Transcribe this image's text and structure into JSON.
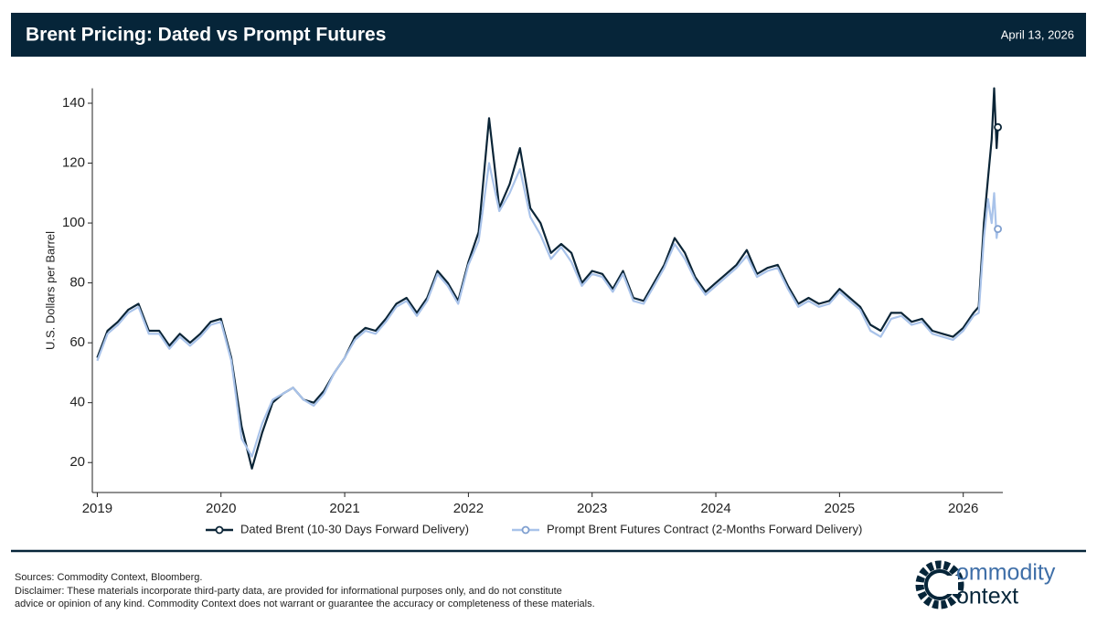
{
  "chart_data": {
    "type": "line",
    "title": "Brent Pricing: Dated vs Prompt Futures",
    "date": "April 13, 2026",
    "y_label": "U.S. Dollars per Barrel",
    "x": [
      2019.0,
      2019.083,
      2019.167,
      2019.25,
      2019.333,
      2019.417,
      2019.5,
      2019.583,
      2019.667,
      2019.75,
      2019.833,
      2019.917,
      2020.0,
      2020.083,
      2020.167,
      2020.25,
      2020.333,
      2020.417,
      2020.5,
      2020.583,
      2020.667,
      2020.75,
      2020.833,
      2020.917,
      2021.0,
      2021.083,
      2021.167,
      2021.25,
      2021.333,
      2021.417,
      2021.5,
      2021.583,
      2021.667,
      2021.75,
      2021.833,
      2021.917,
      2022.0,
      2022.083,
      2022.167,
      2022.25,
      2022.333,
      2022.417,
      2022.5,
      2022.583,
      2022.667,
      2022.75,
      2022.833,
      2022.917,
      2023.0,
      2023.083,
      2023.167,
      2023.25,
      2023.333,
      2023.417,
      2023.5,
      2023.583,
      2023.667,
      2023.75,
      2023.833,
      2023.917,
      2024.0,
      2024.083,
      2024.167,
      2024.25,
      2024.333,
      2024.417,
      2024.5,
      2024.583,
      2024.667,
      2024.75,
      2024.833,
      2024.917,
      2025.0,
      2025.083,
      2025.167,
      2025.25,
      2025.333,
      2025.417,
      2025.5,
      2025.583,
      2025.667,
      2025.75,
      2025.833,
      2025.917,
      2026.0,
      2026.083,
      2026.125,
      2026.167,
      2026.2,
      2026.23,
      2026.25,
      2026.27,
      2026.28
    ],
    "series": [
      {
        "name": "Dated Brent (10-30 Days Forward Delivery)",
        "color": "#0b2537",
        "values": [
          55,
          64,
          67,
          71,
          73,
          64,
          64,
          59,
          63,
          60,
          63,
          67,
          68,
          55,
          32,
          18,
          30,
          40,
          43,
          45,
          41,
          40,
          44,
          50,
          55,
          62,
          65,
          64,
          68,
          73,
          75,
          70,
          75,
          84,
          80,
          74,
          87,
          97,
          135,
          105,
          113,
          125,
          105,
          100,
          90,
          93,
          90,
          80,
          84,
          83,
          78,
          84,
          75,
          74,
          80,
          86,
          95,
          90,
          82,
          77,
          80,
          83,
          86,
          91,
          83,
          85,
          86,
          79,
          73,
          75,
          73,
          74,
          78,
          75,
          72,
          66,
          64,
          70,
          70,
          67,
          68,
          64,
          63,
          62,
          65,
          70,
          72,
          100,
          115,
          128,
          145,
          125,
          132
        ]
      },
      {
        "name": "Prompt Brent Futures Contract (2-Months Forward Delivery)",
        "color": "#a9c3ea",
        "values": [
          54,
          63,
          66,
          70,
          72,
          63,
          63,
          58,
          62,
          59,
          62,
          66,
          67,
          54,
          28,
          22,
          33,
          41,
          43,
          45,
          41,
          39,
          43,
          50,
          55,
          61,
          64,
          63,
          67,
          72,
          74,
          69,
          74,
          83,
          79,
          73,
          86,
          94,
          120,
          104,
          110,
          118,
          102,
          96,
          88,
          92,
          87,
          79,
          83,
          82,
          77,
          83,
          74,
          73,
          79,
          85,
          93,
          88,
          81,
          76,
          79,
          82,
          85,
          89,
          82,
          84,
          85,
          78,
          72,
          74,
          72,
          73,
          77,
          74,
          71,
          64,
          62,
          68,
          69,
          66,
          67,
          63,
          62,
          61,
          64,
          69,
          70,
          95,
          108,
          100,
          110,
          95,
          98
        ]
      }
    ],
    "xlim": [
      2018.96,
      2026.32
    ],
    "xticks": [
      2019,
      2020,
      2021,
      2022,
      2023,
      2024,
      2025,
      2026
    ],
    "ylim": [
      10,
      145
    ],
    "yticks": [
      20,
      40,
      60,
      80,
      100,
      120,
      140
    ],
    "grid": false,
    "legend": "bottom"
  },
  "footer": {
    "sources": "Sources: Commodity Context, Bloomberg.",
    "disclaimer": [
      "Disclaimer: These materials incorporate third-party data, are provided for informational purposes only, and do not constitute",
      "advice or opinion of any kind. Commodity Context does not warrant or guarantee the accuracy or completeness of these materials."
    ],
    "logo": [
      "ommodity",
      "ontext"
    ]
  }
}
